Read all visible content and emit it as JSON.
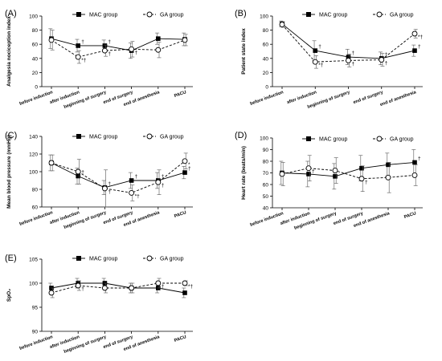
{
  "chart_data": [
    {
      "panel_label": "(A)",
      "type": "line",
      "ylabel": "Analgesia nociception index",
      "ylim": [
        0,
        100
      ],
      "yticks": [
        0,
        20,
        40,
        60,
        80,
        100
      ],
      "categories": [
        "before induction",
        "after induction",
        "beginning of surgery",
        "end of surgery",
        "end of anesthesia",
        "PACU"
      ],
      "series": [
        {
          "name": "MAC group",
          "marker": "square",
          "line": "solid",
          "values": [
            68,
            58,
            58,
            51,
            68,
            67
          ],
          "err": [
            14,
            9,
            8,
            11,
            8,
            9
          ],
          "annotations": [
            "",
            "†",
            "†",
            "",
            "",
            ""
          ]
        },
        {
          "name": "GA group",
          "marker": "circle",
          "line": "dashed",
          "values": [
            66,
            42,
            51,
            53,
            52,
            66
          ],
          "err": [
            14,
            9,
            8,
            11,
            11,
            8
          ],
          "annotations": [
            "",
            "*†",
            "†",
            "†",
            "",
            ""
          ]
        }
      ],
      "legend": "top"
    },
    {
      "panel_label": "(B)",
      "type": "line",
      "ylabel": "Patient state index",
      "ylim": [
        0,
        100
      ],
      "yticks": [
        0,
        20,
        40,
        60,
        80,
        100
      ],
      "categories": [
        "before induction",
        "after induction",
        "beginning of surgery",
        "end of surgery",
        "end of anesthesia"
      ],
      "series": [
        {
          "name": "MAC group",
          "marker": "square",
          "line": "solid",
          "values": [
            89,
            51,
            42,
            40,
            51
          ],
          "err": [
            4,
            14,
            11,
            9,
            8
          ],
          "annotations": [
            "",
            "†",
            "†",
            "†",
            "†"
          ]
        },
        {
          "name": "GA group",
          "marker": "circle",
          "line": "dashed",
          "values": [
            88,
            35,
            37,
            38,
            75
          ],
          "err": [
            4,
            9,
            9,
            9,
            6
          ],
          "annotations": [
            "",
            "*†",
            "†",
            "†",
            "*†"
          ]
        }
      ],
      "legend": "top"
    },
    {
      "panel_label": "(C)",
      "type": "line",
      "ylabel": "Mean blood pressure (mmHg)",
      "ylim": [
        60,
        140
      ],
      "yticks": [
        60,
        80,
        100,
        120,
        140
      ],
      "categories": [
        "before induction",
        "after induction",
        "beginning of surgery",
        "end of surgery",
        "end of anesthesia",
        "PACU"
      ],
      "series": [
        {
          "name": "MAC group",
          "marker": "square",
          "line": "solid",
          "values": [
            110,
            95,
            82,
            90,
            90,
            99
          ],
          "err": [
            9,
            9,
            8,
            9,
            9,
            7
          ],
          "annotations": [
            "",
            "†",
            "†",
            "†",
            "†",
            "†"
          ]
        },
        {
          "name": "GA group",
          "marker": "circle",
          "line": "dashed",
          "values": [
            110,
            100,
            81,
            76,
            88,
            112
          ],
          "err": [
            9,
            14,
            21,
            9,
            14,
            9
          ],
          "annotations": [
            "",
            "",
            "†",
            "*†",
            "†",
            "*"
          ]
        }
      ],
      "legend": "top"
    },
    {
      "panel_label": "(D)",
      "type": "line",
      "ylabel": "Heart rate (beats/min)",
      "ylim": [
        40,
        100
      ],
      "yticks": [
        40,
        50,
        60,
        70,
        80,
        90,
        100
      ],
      "categories": [
        "before induction",
        "after induction",
        "beginning of surgery",
        "end of surgery",
        "end of anesthesia",
        "PACU"
      ],
      "series": [
        {
          "name": "MAC group",
          "marker": "square",
          "line": "solid",
          "values": [
            70,
            69,
            67,
            74,
            77,
            79
          ],
          "err": [
            10,
            11,
            11,
            11,
            10,
            11
          ],
          "annotations": [
            "",
            "",
            "",
            "",
            "",
            "†"
          ]
        },
        {
          "name": "GA group",
          "marker": "circle",
          "line": "dashed",
          "values": [
            69,
            74,
            72,
            65,
            66,
            68
          ],
          "err": [
            10,
            11,
            11,
            11,
            13,
            9
          ],
          "annotations": [
            "",
            "†",
            "",
            "†",
            "",
            ""
          ]
        }
      ],
      "legend": "top"
    },
    {
      "panel_label": "(E)",
      "type": "line",
      "ylabel": "SpO₂",
      "ylim": [
        90,
        105
      ],
      "yticks": [
        90,
        95,
        100,
        105
      ],
      "categories": [
        "before induction",
        "after induction",
        "beginning of surgery",
        "end of surgery",
        "end of anesthesia",
        "PACU"
      ],
      "series": [
        {
          "name": "MAC group",
          "marker": "square",
          "line": "solid",
          "values": [
            99,
            100,
            100,
            99,
            99,
            98
          ],
          "err": [
            1,
            1,
            1,
            1,
            1,
            1
          ],
          "annotations": [
            "",
            "",
            "",
            "",
            "",
            ""
          ]
        },
        {
          "name": "GA group",
          "marker": "circle",
          "line": "dashed",
          "values": [
            98,
            99.5,
            99,
            99,
            100,
            100
          ],
          "err": [
            1,
            1,
            1,
            1,
            1,
            0.5
          ],
          "annotations": [
            "",
            "†",
            "",
            "",
            "†",
            "*†"
          ]
        }
      ],
      "legend": "top"
    }
  ]
}
